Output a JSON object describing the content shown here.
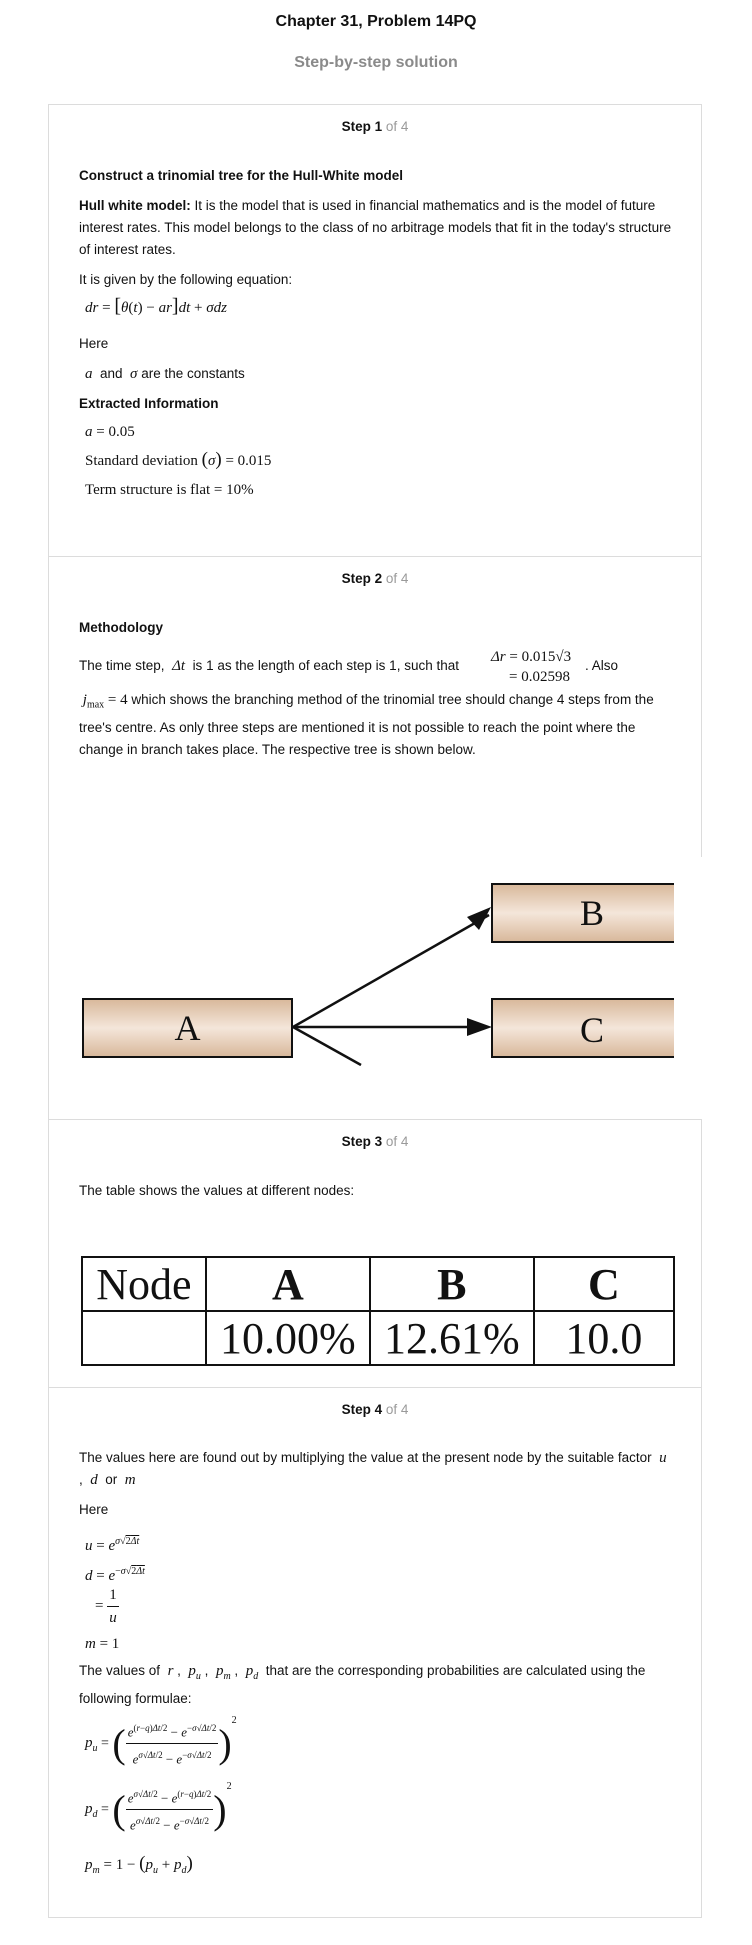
{
  "header": {
    "title": "Chapter 31, Problem 14PQ",
    "subtitle": "Step-by-step solution"
  },
  "steps": [
    {
      "label": "Step 1",
      "of": "of 4",
      "heading": "Construct a trinomial tree for the Hull-White model",
      "model_bold": "Hull white model:",
      "model_text": " It is the model that is used in financial mathematics and is the model of future interest rates. This model belongs to the class of no arbitrage models that fit in the today's structure of interest rates.",
      "given_text": "It is given by the following equation:",
      "equation": "dr = [θ(t) − ar] dt + σdz",
      "here": "Here",
      "constants_text": "a and σ are the constants",
      "extracted_heading": "Extracted Information",
      "info": [
        "a = 0.05",
        "Standard deviation (σ) = 0.015",
        "Term structure is flat = 10%"
      ]
    },
    {
      "label": "Step 2",
      "of": "of 4",
      "heading": "Methodology",
      "text_a": "The time step,",
      "sym_dt": "Δt",
      "text_b": "is 1 as the length of each step is 1, such that",
      "dr_line1": "Δr = 0.015√3",
      "dr_line2": "= 0.02598",
      "text_c": ". Also",
      "jmax": "jmax = 4",
      "text_d": "which shows the branching method of the trinomial tree should change 4 steps from the tree's centre. As only three steps are mentioned it is not possible to reach the point where the change in branch takes place. The respective tree is shown below.",
      "tree_nodes": [
        "A",
        "B",
        "C"
      ]
    },
    {
      "label": "Step 3",
      "of": "of 4",
      "text": "The table shows the values at different nodes:",
      "table_header": [
        "Node",
        "A",
        "B",
        "C"
      ],
      "table_row": [
        "",
        "10.00%",
        "12.61%",
        "10.0"
      ]
    },
    {
      "label": "Step 4",
      "of": "of 4",
      "text_a": "The values here are found out by multiplying the value at the present node by the suitable factor",
      "factors": "u, d or m",
      "here": "Here",
      "eq_u": "u = e^(σ√(2Δt))",
      "eq_d": "d = e^(−σ√(2Δt))",
      "eq_d2": "= 1/u",
      "eq_m": "m = 1",
      "text_b": "The values of",
      "vars": "r, pu, pm, pd",
      "text_c": "that are the corresponding probabilities are calculated using the following formulae:",
      "eq_pu": "pu = ((e^((r−q)Δt/2) − e^(−σ√(Δt/2))) / (e^(σ√(Δt/2)) − e^(−σ√(Δt/2))))^2",
      "eq_pd": "pd = ((e^(σ√(Δt/2)) − e^((r−q)Δt/2)) / (e^(σ√(Δt/2)) − e^(−σ√(Δt/2))))^2",
      "eq_pm": "pm = 1 − (pu + pd)"
    }
  ]
}
